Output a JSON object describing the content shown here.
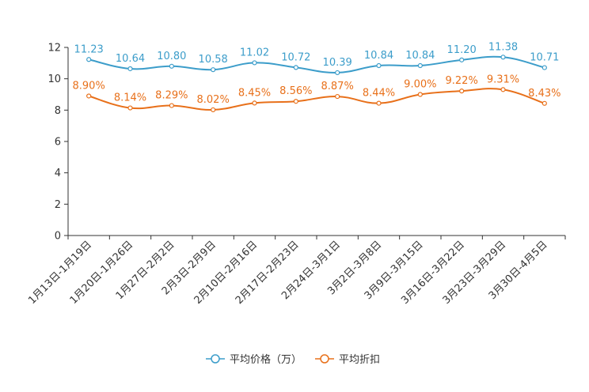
{
  "chart_data": {
    "type": "line",
    "title": "",
    "xlabel": "",
    "ylabel": "",
    "ylim": [
      0,
      12
    ],
    "yticks": [
      0,
      2,
      4,
      6,
      8,
      10,
      12
    ],
    "grid": false,
    "legend_position": "bottom-center",
    "categories": [
      "1月13日-1月19日",
      "1月20日-1月26日",
      "1月27日-2月2日",
      "2月3日-2月9日",
      "2月10日-2月16日",
      "2月17日-2月23日",
      "2月24日-3月1日",
      "3月2日-3月8日",
      "3月9日-3月15日",
      "3月16日-3月22日",
      "3月23日-3月29日",
      "3月30日-4月5日"
    ],
    "series": [
      {
        "name": "平均价格（万）",
        "color": "#3c9dca",
        "values": [
          11.23,
          10.64,
          10.8,
          10.58,
          11.02,
          10.72,
          10.39,
          10.84,
          10.84,
          11.2,
          11.38,
          10.71
        ],
        "labels": [
          "11.23",
          "10.64",
          "10.80",
          "10.58",
          "11.02",
          "10.72",
          "10.39",
          "10.84",
          "10.84",
          "11.20",
          "11.38",
          "10.71"
        ]
      },
      {
        "name": "平均折扣",
        "color": "#e8701a",
        "values": [
          8.9,
          8.14,
          8.29,
          8.02,
          8.45,
          8.56,
          8.87,
          8.44,
          9.0,
          9.22,
          9.31,
          8.43
        ],
        "labels": [
          "8.90%",
          "8.14%",
          "8.29%",
          "8.02%",
          "8.45%",
          "8.56%",
          "8.87%",
          "8.44%",
          "9.00%",
          "9.22%",
          "9.31%",
          "8.43%"
        ]
      }
    ]
  }
}
